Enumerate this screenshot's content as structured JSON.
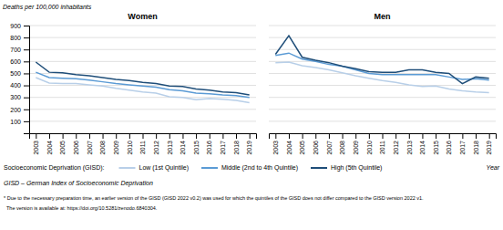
{
  "chart_data": [
    {
      "type": "line",
      "title": "Women",
      "y_label": "Deaths per 100,000 inhabitants",
      "x_label": "Year",
      "legend": "bottom",
      "legend_title": "Socioeconomic Deprivation (GISD):",
      "categories": [
        2003,
        2004,
        2005,
        2006,
        2007,
        2008,
        2009,
        2010,
        2011,
        2012,
        2013,
        2014,
        2015,
        2016,
        2017,
        2018,
        2019
      ],
      "series": [
        {
          "name": "Low (1st Quintile)",
          "color": "#b8cfe8",
          "values": [
            465,
            420,
            415,
            415,
            405,
            395,
            375,
            360,
            345,
            335,
            305,
            300,
            280,
            290,
            285,
            275,
            255
          ]
        },
        {
          "name": "Middle (2nd to 4th Quintile)",
          "color": "#5b9bd5",
          "values": [
            510,
            465,
            460,
            455,
            445,
            430,
            415,
            405,
            395,
            385,
            365,
            355,
            335,
            330,
            320,
            315,
            300
          ]
        },
        {
          "name": "High (5th Quintile)",
          "color": "#1f4e79",
          "values": [
            595,
            510,
            505,
            490,
            480,
            465,
            450,
            440,
            425,
            415,
            395,
            390,
            370,
            360,
            345,
            340,
            320
          ]
        }
      ],
      "ylim": [
        0,
        900
      ],
      "yticks": [
        100,
        200,
        300,
        400,
        500,
        600,
        700,
        800,
        900
      ],
      "grid": true,
      "annotations": [
        "GISD – German Index of Socioeconomic Deprivation",
        "* Due to the necessary preparation time, an earlier version of the GISD (GISD 2022 v0.2) was used for which the quintiles of the GISD does not differ compared to the GISD version 2022 v1.",
        "  The version is available at: https://doi.org/10.5281/zenodo.6840304."
      ]
    },
    {
      "type": "line",
      "title": "Men",
      "legend": false,
      "tick_labels": "x",
      "categories": [
        2003,
        2004,
        2005,
        2006,
        2007,
        2008,
        2009,
        2010,
        2011,
        2012,
        2013,
        2014,
        2015,
        2016,
        2017,
        2018,
        2019
      ],
      "series": [
        {
          "name": "Low (1st Quintile)",
          "color": "#b8cfe8",
          "values": [
            590,
            595,
            565,
            550,
            530,
            505,
            480,
            460,
            440,
            425,
            405,
            390,
            395,
            370,
            355,
            345,
            340
          ]
        },
        {
          "name": "Middle (2nd to 4th Quintile)",
          "color": "#5b9bd5",
          "values": [
            650,
            670,
            620,
            600,
            575,
            560,
            530,
            500,
            490,
            490,
            490,
            490,
            490,
            470,
            450,
            455,
            445
          ]
        },
        {
          "name": "High (5th Quintile)",
          "color": "#1f4e79",
          "values": [
            660,
            815,
            635,
            610,
            590,
            560,
            540,
            515,
            510,
            510,
            530,
            530,
            510,
            500,
            415,
            470,
            460
          ]
        }
      ],
      "ylim": [
        0,
        900
      ],
      "yticks": [
        100,
        200,
        300,
        400,
        500,
        600,
        700,
        800,
        900
      ],
      "grid": true
    }
  ]
}
